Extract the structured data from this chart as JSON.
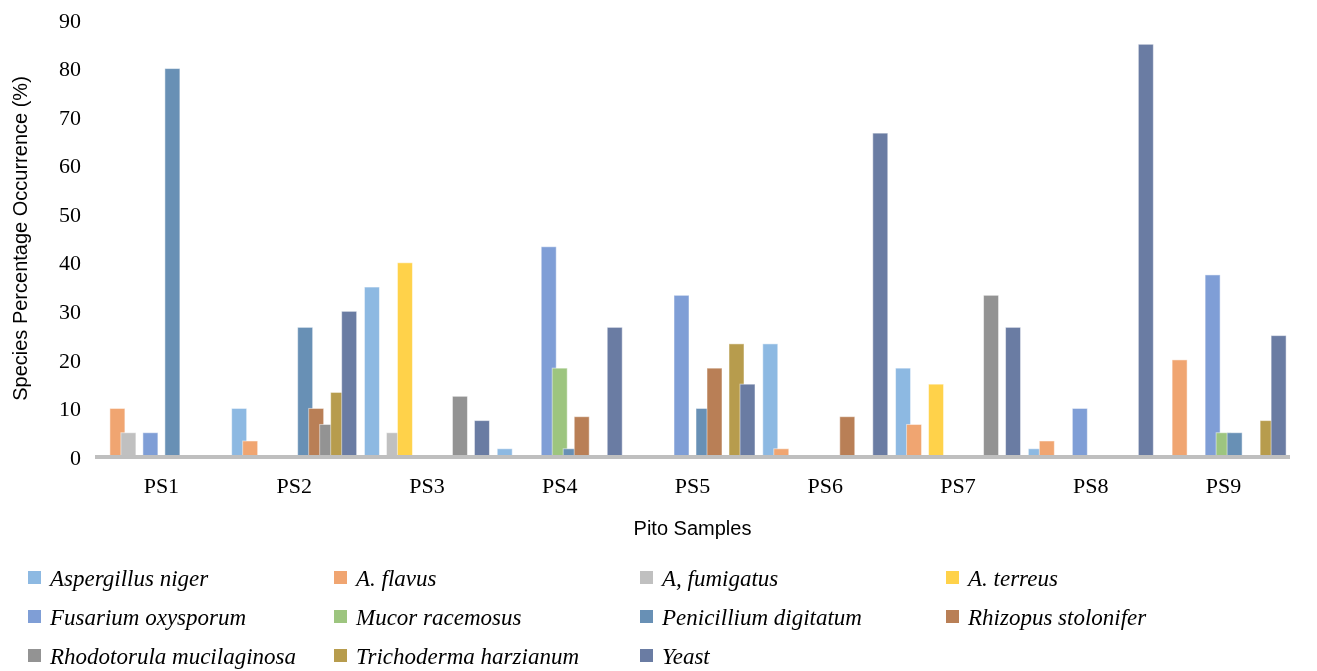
{
  "chart_data": {
    "type": "bar",
    "xlabel": "Pito Samples",
    "ylabel": "Species Percentage Occurrence (%)",
    "categories": [
      "PS1",
      "PS2",
      "PS3",
      "PS4",
      "PS5",
      "PS6",
      "PS7",
      "PS8",
      "PS9"
    ],
    "ylim": [
      0,
      90
    ],
    "yticks": [
      0,
      10,
      20,
      30,
      40,
      50,
      60,
      70,
      80,
      90
    ],
    "grid": false,
    "legend": "bottom",
    "series": [
      {
        "name": "Aspergillus niger",
        "color": "#8db9e2",
        "values": [
          0,
          10,
          35,
          1.7,
          0,
          23.3,
          18.3,
          1.7,
          0
        ]
      },
      {
        "name": "A. flavus",
        "color": "#f0a571",
        "values": [
          10,
          3.3,
          0,
          0,
          0,
          1.7,
          6.7,
          3.3,
          20
        ]
      },
      {
        "name": "A, fumigatus",
        "color": "#c0c0c0",
        "values": [
          5,
          0,
          5,
          0,
          0,
          0,
          0,
          0,
          0
        ]
      },
      {
        "name": "A. terreus",
        "color": "#ffd24a",
        "values": [
          0,
          0,
          40,
          0,
          0,
          0,
          15,
          0,
          0
        ]
      },
      {
        "name": "Fusarium oxysporum",
        "color": "#7f9ed6",
        "values": [
          5,
          0,
          0,
          43.3,
          33.3,
          0,
          0,
          10,
          37.5
        ]
      },
      {
        "name": "Mucor racemosus",
        "color": "#9dc57f",
        "values": [
          0,
          0,
          0,
          18.3,
          0,
          0,
          0,
          0,
          5
        ]
      },
      {
        "name": "Penicillium digitatum",
        "color": "#6890b5",
        "values": [
          80,
          26.7,
          0,
          1.7,
          10,
          0,
          0,
          0,
          5
        ]
      },
      {
        "name": "Rhizopus stolonifer",
        "color": "#b97f56",
        "values": [
          0,
          10,
          0,
          8.3,
          18.3,
          8.3,
          0,
          0,
          0
        ]
      },
      {
        "name": "Rhodotorula mucilaginosa",
        "color": "#939393",
        "values": [
          0,
          6.7,
          12.5,
          0,
          0,
          0,
          33.3,
          0,
          0
        ]
      },
      {
        "name": "Trichoderma harzianum",
        "color": "#b79c4d",
        "values": [
          0,
          13.3,
          0,
          0,
          23.3,
          0,
          0,
          0,
          7.5
        ]
      },
      {
        "name": "Yeast",
        "color": "#6a7ca3",
        "values": [
          0,
          30,
          7.5,
          26.7,
          15,
          66.7,
          26.7,
          85,
          25
        ]
      }
    ]
  }
}
